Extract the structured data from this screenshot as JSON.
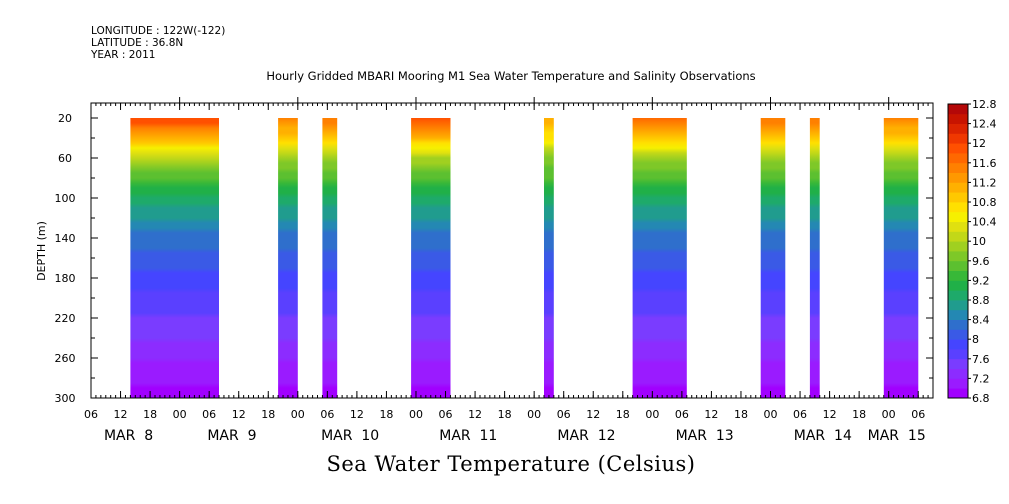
{
  "header": {
    "longitude": "LONGITUDE : 122W(-122)",
    "latitude": "LATITUDE : 36.8N",
    "year": "YEAR : 2011"
  },
  "chart_data": {
    "type": "heatmap",
    "title": "Hourly Gridded MBARI Mooring M1 Sea Water Temperature and Salinity Observations",
    "ylabel": "DEPTH (m)",
    "variable_label": "Sea Water Temperature (Celsius)",
    "x_start_label": "06",
    "x_hours_range": [
      0,
      171
    ],
    "ylim": [
      300,
      5
    ],
    "y_ticks": [
      20,
      60,
      100,
      140,
      180,
      220,
      260,
      300
    ],
    "hour_tick_labels": [
      "06",
      "12",
      "18",
      "00",
      "06",
      "12",
      "18",
      "00",
      "06",
      "12",
      "18",
      "00",
      "06",
      "12",
      "18",
      "00",
      "06",
      "12",
      "18",
      "00",
      "06",
      "12",
      "18",
      "00",
      "06",
      "12",
      "18",
      "00",
      "06"
    ],
    "day_labels": [
      {
        "label": "MAR 8",
        "hour": 6
      },
      {
        "label": "MAR 9",
        "hour": 27
      },
      {
        "label": "MAR 10",
        "hour": 51
      },
      {
        "label": "MAR 11",
        "hour": 75
      },
      {
        "label": "MAR 12",
        "hour": 99
      },
      {
        "label": "MAR 13",
        "hour": 123
      },
      {
        "label": "MAR 14",
        "hour": 147
      },
      {
        "label": "MAR 15",
        "hour": 162
      }
    ],
    "data_segments": [
      {
        "start_hour": 8,
        "end_hour": 26,
        "surface_temp": 12.0
      },
      {
        "start_hour": 38,
        "end_hour": 42,
        "surface_temp": 11.5
      },
      {
        "start_hour": 47,
        "end_hour": 50,
        "surface_temp": 11.6
      },
      {
        "start_hour": 65,
        "end_hour": 73,
        "surface_temp": 11.8
      },
      {
        "start_hour": 92,
        "end_hour": 94,
        "surface_temp": 11.2
      },
      {
        "start_hour": 110,
        "end_hour": 121,
        "surface_temp": 11.7
      },
      {
        "start_hour": 136,
        "end_hour": 141,
        "surface_temp": 11.6
      },
      {
        "start_hour": 146,
        "end_hour": 148,
        "surface_temp": 11.6
      },
      {
        "start_hour": 161,
        "end_hour": 168,
        "surface_temp": 11.5
      }
    ],
    "temperature_profile": [
      {
        "depth": 20,
        "temp": 12.0
      },
      {
        "depth": 40,
        "temp": 11.2
      },
      {
        "depth": 60,
        "temp": 10.0
      },
      {
        "depth": 80,
        "temp": 9.4
      },
      {
        "depth": 100,
        "temp": 8.9
      },
      {
        "depth": 140,
        "temp": 8.3
      },
      {
        "depth": 180,
        "temp": 7.9
      },
      {
        "depth": 220,
        "temp": 7.6
      },
      {
        "depth": 260,
        "temp": 7.2
      },
      {
        "depth": 300,
        "temp": 6.9
      }
    ],
    "colorbar": {
      "labels": [
        "12.8",
        "12.4",
        "12",
        "11.6",
        "11.2",
        "10.8",
        "10.4",
        "10",
        "9.6",
        "9.2",
        "8.8",
        "8.4",
        "8",
        "7.6",
        "7.2",
        "6.8"
      ],
      "min": 6.8,
      "max": 12.8,
      "step": 0.2,
      "colors": [
        "#a100ff",
        "#9a1bff",
        "#8c2cff",
        "#7a3cff",
        "#5a40ff",
        "#4545ff",
        "#3a5ae6",
        "#2f6fcc",
        "#2488b3",
        "#209c8e",
        "#1eaa6a",
        "#20b048",
        "#38b838",
        "#5cc030",
        "#7ec828",
        "#a0d020",
        "#c2d818",
        "#e0e010",
        "#f6f000",
        "#ffe000",
        "#ffc800",
        "#ffb000",
        "#ff9800",
        "#ff8000",
        "#ff6800",
        "#ff5000",
        "#f03800",
        "#dc2400",
        "#c81400",
        "#b40808"
      ]
    }
  }
}
